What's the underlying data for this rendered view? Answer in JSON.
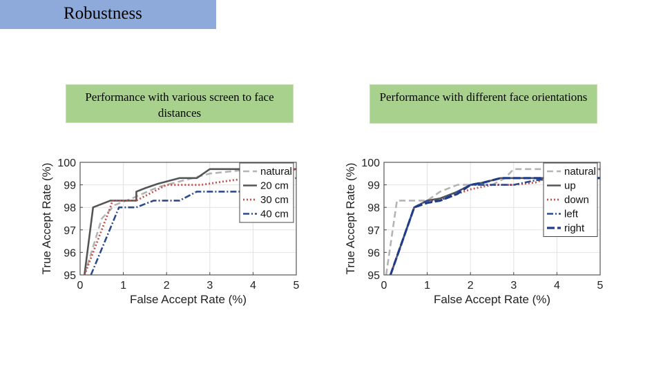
{
  "slide": {
    "title": "Robustness",
    "title_bar_color": "#8eaadb",
    "caption_color": "#a9d18e"
  },
  "captions": [
    "Performance with various screen to face distances",
    "Performance with different face orientations"
  ],
  "chart_data": [
    {
      "type": "line",
      "title": "",
      "xlabel": "False Accept Rate (%)",
      "ylabel": "True Accept Rate (%)",
      "xlim": [
        0,
        5
      ],
      "ylim": [
        95,
        100
      ],
      "xticks": [
        0,
        1,
        2,
        3,
        4,
        5
      ],
      "yticks": [
        95,
        96,
        97,
        98,
        99,
        100
      ],
      "grid": true,
      "legend_position": "top-right",
      "series": [
        {
          "name": "natural",
          "color": "#b4b4b4",
          "dash": "dash",
          "x": [
            0.1,
            0.5,
            0.8,
            1.2,
            1.8,
            2.4,
            3.0,
            4.0,
            5.0
          ],
          "y": [
            95.0,
            97.5,
            98.1,
            98.4,
            98.9,
            99.2,
            99.5,
            99.7,
            99.7
          ]
        },
        {
          "name": "20 cm",
          "color": "#555555",
          "dash": "solid",
          "x": [
            0.1,
            0.3,
            0.7,
            1.3,
            1.3,
            1.5,
            1.8,
            2.0,
            2.3,
            2.7,
            3.0,
            4.0,
            5.0
          ],
          "y": [
            95.0,
            98.0,
            98.3,
            98.3,
            98.7,
            98.85,
            99.05,
            99.15,
            99.3,
            99.3,
            99.7,
            99.7,
            99.7
          ]
        },
        {
          "name": "30 cm",
          "color": "#c0504d",
          "dash": "dot",
          "x": [
            0.1,
            0.7,
            0.75,
            1.3,
            1.6,
            2.0,
            2.5,
            2.8,
            3.5,
            4.0,
            5.0
          ],
          "y": [
            95.0,
            98.0,
            98.3,
            98.3,
            98.6,
            99.0,
            99.0,
            99.0,
            99.2,
            99.3,
            99.7
          ]
        },
        {
          "name": "40 cm",
          "color": "#2e4a8f",
          "dash": "dashdot",
          "x": [
            0.25,
            0.9,
            1.0,
            1.3,
            1.7,
            2.3,
            2.7,
            3.5,
            4.0,
            5.0
          ],
          "y": [
            95.0,
            98.0,
            98.0,
            98.0,
            98.3,
            98.3,
            98.7,
            98.7,
            98.7,
            99.3
          ]
        }
      ]
    },
    {
      "type": "line",
      "title": "",
      "xlabel": "False Accept Rate (%)",
      "ylabel": "True Accept Rate (%)",
      "xlim": [
        0,
        5
      ],
      "ylim": [
        95,
        100
      ],
      "xticks": [
        0,
        1,
        2,
        3,
        4,
        5
      ],
      "yticks": [
        95,
        96,
        97,
        98,
        99,
        100
      ],
      "grid": true,
      "legend_position": "top-right",
      "series": [
        {
          "name": "natural",
          "color": "#b4b4b4",
          "dash": "dash",
          "x": [
            0.05,
            0.3,
            0.7,
            1.0,
            1.3,
            1.7,
            2.0,
            2.5,
            2.8,
            3.0,
            4.0,
            5.0
          ],
          "y": [
            95.0,
            98.3,
            98.3,
            98.3,
            98.7,
            99.0,
            99.0,
            99.0,
            99.3,
            99.7,
            99.7,
            99.7
          ]
        },
        {
          "name": "up",
          "color": "#555555",
          "dash": "solid",
          "x": [
            0.15,
            0.7,
            1.0,
            1.3,
            1.7,
            2.0,
            2.3,
            2.7,
            3.3,
            4.0,
            5.0
          ],
          "y": [
            95.0,
            98.0,
            98.3,
            98.4,
            98.7,
            99.0,
            99.1,
            99.3,
            99.3,
            99.3,
            99.3
          ]
        },
        {
          "name": "down",
          "color": "#c0504d",
          "dash": "dot",
          "x": [
            0.15,
            0.7,
            1.0,
            1.3,
            1.7,
            2.0,
            2.5,
            3.0,
            3.5,
            4.0,
            5.0
          ],
          "y": [
            95.0,
            98.0,
            98.3,
            98.3,
            98.6,
            98.8,
            99.0,
            99.0,
            99.1,
            99.5,
            99.7
          ]
        },
        {
          "name": "left",
          "color": "#2e4a8f",
          "dash": "dashdot",
          "x": [
            0.15,
            0.7,
            1.0,
            1.3,
            1.7,
            2.0,
            2.5,
            3.0,
            3.5,
            4.0,
            5.0
          ],
          "y": [
            95.0,
            98.0,
            98.3,
            98.3,
            98.7,
            99.0,
            99.0,
            99.0,
            99.2,
            99.3,
            99.3
          ]
        },
        {
          "name": "right",
          "color": "#1f3c8a",
          "dash": "longdash",
          "x": [
            0.15,
            0.7,
            1.0,
            1.3,
            1.7,
            2.0,
            2.3,
            2.7,
            3.3,
            4.0,
            5.0
          ],
          "y": [
            95.0,
            98.0,
            98.2,
            98.3,
            98.6,
            99.0,
            99.1,
            99.3,
            99.3,
            99.3,
            99.3
          ]
        }
      ]
    }
  ]
}
